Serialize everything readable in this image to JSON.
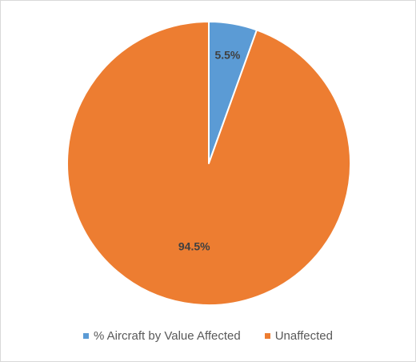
{
  "chart_data": {
    "type": "pie",
    "title": "",
    "slices": [
      {
        "label": "% Aircraft by Value Affected",
        "value": 5.5,
        "display": "5.5%",
        "color": "#5b9bd5"
      },
      {
        "label": "Unaffected",
        "value": 94.5,
        "display": "94.5%",
        "color": "#ed7d31"
      }
    ],
    "start_angle_deg": 0,
    "direction": "clockwise",
    "legend_position": "bottom",
    "slice_border_color": "#ffffff"
  }
}
